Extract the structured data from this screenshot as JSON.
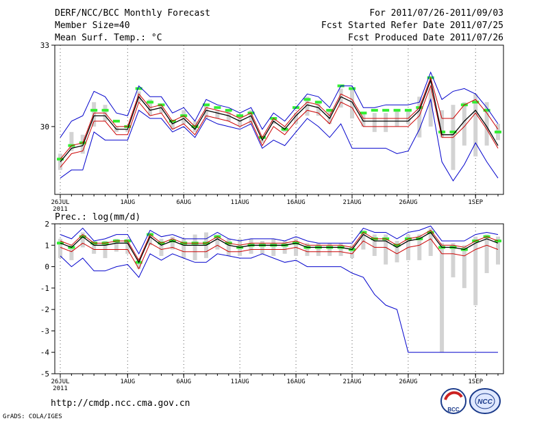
{
  "header": {
    "title": "DERF/NCC/BCC Monthly Forecast",
    "member_size": "Member Size=40",
    "variable": "Mean Surf. Temp.: °C",
    "period": "For 2011/07/26-2011/09/03",
    "start_date": "Fcst Started Refer Date 2011/07/25",
    "produced_date": "Fcst Produced Date 2011/07/26"
  },
  "footer": {
    "url": "http://cmdp.ncc.cma.gov.cn",
    "credit": "GrADS: COLA/IGES"
  },
  "logos": {
    "bcc_text": "BCC",
    "ncc_text": "NCC"
  },
  "colors": {
    "ensemble_mean": "#000000",
    "spread": "#cc0000",
    "envelope": "#0000cc",
    "box": "#d3d3d3",
    "median": "#33ee33"
  },
  "chart_data": [
    {
      "type": "line",
      "name": "temperature",
      "ylabel": "",
      "ylim": [
        27.5,
        33
      ],
      "y_ticks": [
        30,
        33
      ],
      "x_tick_labels": [
        "26JUL",
        "1AUG",
        "6AUG",
        "11AUG",
        "16AUG",
        "21AUG",
        "26AUG",
        "1SEP"
      ],
      "x_year": "2011",
      "days": 40,
      "series": [
        {
          "name": "mean",
          "values": [
            28.7,
            29.2,
            29.3,
            30.4,
            30.4,
            29.9,
            29.9,
            31.1,
            30.6,
            30.7,
            30.1,
            30.3,
            29.9,
            30.6,
            30.5,
            30.4,
            30.2,
            30.4,
            29.5,
            30.2,
            29.9,
            30.4,
            30.8,
            30.7,
            30.3,
            31.1,
            30.9,
            30.2,
            30.2,
            30.2,
            30.2,
            30.2,
            30.6,
            31.7,
            29.7,
            29.7,
            30.2,
            30.6,
            30.0,
            29.3
          ]
        },
        {
          "name": "upper",
          "values": [
            28.8,
            29.3,
            29.4,
            30.5,
            30.5,
            30.0,
            30.0,
            31.2,
            30.7,
            30.8,
            30.2,
            30.4,
            30.0,
            30.7,
            30.6,
            30.5,
            30.3,
            30.5,
            29.6,
            30.3,
            30.0,
            30.5,
            30.9,
            30.8,
            30.4,
            31.2,
            31.0,
            30.3,
            30.3,
            30.3,
            30.3,
            30.3,
            30.7,
            31.8,
            30.3,
            30.3,
            30.8,
            31.0,
            30.5,
            29.9
          ]
        },
        {
          "name": "lower",
          "values": [
            28.5,
            29.0,
            29.1,
            30.2,
            30.2,
            29.7,
            29.7,
            30.9,
            30.4,
            30.5,
            29.9,
            30.1,
            29.7,
            30.4,
            30.3,
            30.2,
            30.0,
            30.2,
            29.3,
            30.0,
            29.7,
            30.2,
            30.6,
            30.5,
            30.1,
            30.9,
            30.7,
            30.0,
            30.0,
            30.0,
            30.0,
            30.0,
            30.4,
            31.5,
            29.6,
            29.6,
            30.0,
            30.5,
            29.9,
            29.2
          ]
        },
        {
          "name": "max",
          "values": [
            29.6,
            30.2,
            30.4,
            31.3,
            31.1,
            30.5,
            30.4,
            31.5,
            31.1,
            31.1,
            30.5,
            30.7,
            30.2,
            31.0,
            30.8,
            30.7,
            30.5,
            30.7,
            29.9,
            30.5,
            30.2,
            30.7,
            31.2,
            31.1,
            30.7,
            31.5,
            31.5,
            30.7,
            30.7,
            30.8,
            30.8,
            30.8,
            30.9,
            32.0,
            31.0,
            31.3,
            31.4,
            31.2,
            30.7,
            30.1
          ]
        },
        {
          "name": "min",
          "values": [
            28.1,
            28.4,
            28.4,
            29.8,
            29.5,
            29.5,
            29.5,
            30.6,
            30.3,
            30.3,
            29.8,
            30.0,
            29.6,
            30.3,
            30.1,
            30.0,
            29.9,
            30.1,
            29.2,
            29.5,
            29.3,
            29.8,
            30.3,
            30.0,
            29.6,
            30.1,
            29.2,
            29.2,
            29.2,
            29.2,
            29.0,
            29.1,
            29.9,
            31.0,
            28.7,
            28.0,
            28.6,
            29.4,
            28.7,
            28.1
          ]
        },
        {
          "name": "box_top",
          "values": [
            29.0,
            29.8,
            29.7,
            30.9,
            30.8,
            30.0,
            29.9,
            31.3,
            31.0,
            30.8,
            30.2,
            30.6,
            30.2,
            30.8,
            30.6,
            30.6,
            30.3,
            30.6,
            29.5,
            30.3,
            30.0,
            30.5,
            31.1,
            30.9,
            30.6,
            31.4,
            31.4,
            30.5,
            30.5,
            30.5,
            30.6,
            30.6,
            31.1,
            31.4,
            30.6,
            30.8,
            30.9,
            31.2,
            30.9,
            30.1
          ]
        },
        {
          "name": "box_bottom",
          "values": [
            28.4,
            29.1,
            29.0,
            30.0,
            30.2,
            29.8,
            29.8,
            30.9,
            30.4,
            30.5,
            29.9,
            30.1,
            29.8,
            30.3,
            30.3,
            30.2,
            30.0,
            30.1,
            29.4,
            30.1,
            29.8,
            30.1,
            30.4,
            30.4,
            30.1,
            30.7,
            30.3,
            30.0,
            29.8,
            29.8,
            30.0,
            30.1,
            29.6,
            30.0,
            29.6,
            28.4,
            29.3,
            28.9,
            29.3,
            29.5
          ]
        },
        {
          "name": "median",
          "values": [
            28.8,
            29.3,
            29.4,
            30.6,
            30.6,
            30.2,
            30.0,
            31.4,
            30.9,
            30.8,
            30.2,
            30.4,
            30.0,
            30.8,
            30.7,
            30.6,
            30.4,
            30.5,
            29.6,
            30.3,
            29.9,
            30.7,
            31.0,
            30.9,
            30.6,
            31.5,
            31.4,
            30.5,
            30.6,
            30.6,
            30.6,
            30.6,
            30.7,
            31.8,
            29.8,
            29.8,
            30.8,
            30.9,
            30.6,
            29.8
          ]
        }
      ]
    },
    {
      "type": "line",
      "name": "precipitation",
      "title": "Prec.: log(mm/d)",
      "ylim": [
        -5,
        2
      ],
      "y_ticks": [
        -5,
        -4,
        -3,
        -2,
        -1,
        0,
        1,
        2
      ],
      "x_tick_labels": [
        "26JUL",
        "1AUG",
        "6AUG",
        "11AUG",
        "16AUG",
        "21AUG",
        "26AUG",
        "1SEP"
      ],
      "x_year": "2011",
      "days": 40,
      "series": [
        {
          "name": "mean",
          "values": [
            1.1,
            0.9,
            1.4,
            1.0,
            1.0,
            1.1,
            1.1,
            0.2,
            1.4,
            1.0,
            1.2,
            1.0,
            1.0,
            1.0,
            1.3,
            1.0,
            0.9,
            1.0,
            1.0,
            1.0,
            1.0,
            1.1,
            0.9,
            0.9,
            0.9,
            0.9,
            0.8,
            1.5,
            1.2,
            1.2,
            0.9,
            1.2,
            1.3,
            1.6,
            0.9,
            0.9,
            0.8,
            1.1,
            1.3,
            1.1
          ]
        },
        {
          "name": "upper",
          "values": [
            1.2,
            1.0,
            1.5,
            1.1,
            1.1,
            1.2,
            1.2,
            0.3,
            1.5,
            1.1,
            1.3,
            1.1,
            1.1,
            1.1,
            1.4,
            1.1,
            1.0,
            1.1,
            1.1,
            1.1,
            1.1,
            1.2,
            1.0,
            1.0,
            1.0,
            1.0,
            0.9,
            1.6,
            1.3,
            1.3,
            1.0,
            1.3,
            1.4,
            1.7,
            1.0,
            1.0,
            0.9,
            1.2,
            1.4,
            1.2
          ]
        },
        {
          "name": "lower",
          "values": [
            0.9,
            0.7,
            1.1,
            0.8,
            0.8,
            0.8,
            0.8,
            -0.1,
            1.1,
            0.8,
            0.9,
            0.7,
            0.7,
            0.7,
            1.0,
            0.7,
            0.7,
            0.8,
            0.8,
            0.8,
            0.8,
            0.9,
            0.7,
            0.7,
            0.7,
            0.7,
            0.6,
            1.2,
            0.9,
            0.9,
            0.6,
            0.9,
            1.0,
            1.3,
            0.6,
            0.6,
            0.5,
            0.8,
            1.0,
            0.8
          ]
        },
        {
          "name": "max",
          "values": [
            1.5,
            1.3,
            1.8,
            1.2,
            1.3,
            1.5,
            1.5,
            0.6,
            1.7,
            1.4,
            1.5,
            1.3,
            1.3,
            1.3,
            1.6,
            1.3,
            1.2,
            1.3,
            1.3,
            1.3,
            1.2,
            1.4,
            1.2,
            1.1,
            1.1,
            1.1,
            1.1,
            1.8,
            1.6,
            1.6,
            1.3,
            1.6,
            1.7,
            1.9,
            1.2,
            1.2,
            1.2,
            1.5,
            1.6,
            1.5
          ]
        },
        {
          "name": "min",
          "values": [
            0.5,
            0.0,
            0.4,
            -0.2,
            -0.2,
            0.0,
            0.1,
            -0.5,
            0.6,
            0.3,
            0.6,
            0.4,
            0.2,
            0.2,
            0.6,
            0.5,
            0.4,
            0.4,
            0.6,
            0.4,
            0.2,
            0.3,
            0.0,
            0.0,
            0.0,
            0.0,
            -0.3,
            -0.5,
            -1.3,
            -1.8,
            -2.0,
            -4.0,
            -4.0,
            -4.0,
            -4.0,
            -4.0,
            -4.0,
            -4.0,
            -4.0,
            -4.0
          ]
        },
        {
          "name": "box_top",
          "values": [
            1.3,
            1.0,
            1.6,
            1.2,
            1.2,
            1.3,
            1.3,
            0.4,
            1.6,
            1.3,
            1.4,
            1.3,
            1.5,
            1.6,
            1.5,
            1.3,
            1.3,
            1.3,
            1.2,
            1.3,
            1.2,
            1.3,
            1.1,
            1.1,
            1.1,
            1.1,
            1.0,
            1.7,
            1.5,
            1.5,
            1.2,
            1.5,
            1.5,
            1.8,
            1.1,
            1.1,
            1.0,
            1.4,
            1.5,
            1.4
          ]
        },
        {
          "name": "box_bottom",
          "values": [
            0.4,
            0.3,
            0.9,
            0.6,
            0.4,
            0.7,
            0.6,
            -0.1,
            1.0,
            0.5,
            0.8,
            0.4,
            0.3,
            0.4,
            0.8,
            0.5,
            0.5,
            0.6,
            0.6,
            0.5,
            0.6,
            0.5,
            0.5,
            0.5,
            0.5,
            0.5,
            0.4,
            0.8,
            0.5,
            0.1,
            0.2,
            0.3,
            0.3,
            0.5,
            -4.0,
            -0.5,
            -1.0,
            -1.8,
            -0.3,
            0.1
          ]
        },
        {
          "name": "median",
          "values": [
            1.1,
            0.9,
            1.4,
            1.1,
            1.1,
            1.2,
            1.2,
            0.2,
            1.5,
            1.1,
            1.2,
            1.1,
            1.1,
            1.1,
            1.4,
            1.1,
            0.9,
            1.0,
            1.0,
            1.0,
            1.0,
            1.1,
            0.9,
            0.9,
            0.9,
            0.9,
            0.8,
            1.6,
            1.3,
            1.3,
            1.0,
            1.3,
            1.3,
            1.6,
            0.9,
            0.9,
            0.8,
            1.2,
            1.4,
            1.2
          ]
        }
      ]
    }
  ]
}
